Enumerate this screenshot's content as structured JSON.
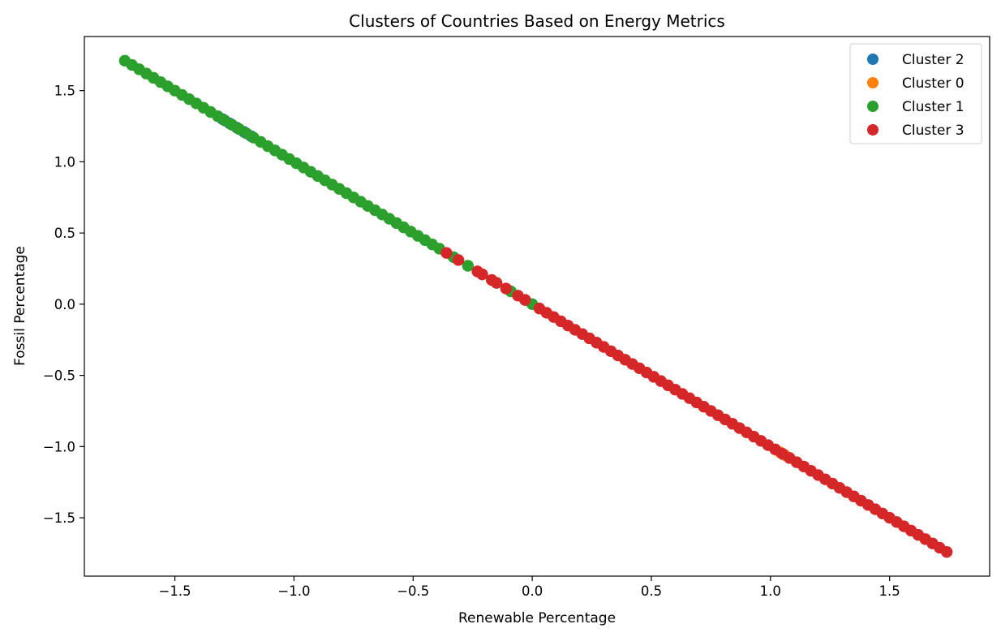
{
  "chart_data": {
    "type": "scatter",
    "title": "Clusters of Countries Based on Energy Metrics",
    "xlabel": "Renewable Percentage",
    "ylabel": "Fossil Percentage",
    "xlim": [
      -1.88,
      1.92
    ],
    "ylim": [
      -1.91,
      1.88
    ],
    "x_ticks": [
      -1.5,
      -1.0,
      -0.5,
      0.0,
      0.5,
      1.0,
      1.5
    ],
    "y_ticks": [
      -1.5,
      -1.0,
      -0.5,
      0.0,
      0.5,
      1.0,
      1.5
    ],
    "x_tick_labels": [
      "−1.5",
      "−1.0",
      "−0.5",
      "0.0",
      "0.5",
      "1.0",
      "1.5"
    ],
    "y_tick_labels": [
      "−1.5",
      "−1.0",
      "−0.5",
      "0.0",
      "0.5",
      "1.0",
      "1.5"
    ],
    "grid": false,
    "legend_position": "top-right",
    "series": [
      {
        "name": "Cluster 2",
        "color": "#1f77b4",
        "x": [
          -1.3,
          -1.27,
          -1.24,
          -1.21,
          -1.18
        ],
        "y": [
          1.3,
          1.27,
          1.24,
          1.21,
          1.18
        ]
      },
      {
        "name": "Cluster 0",
        "color": "#ff7f0e",
        "x": [
          1.04,
          1.06
        ],
        "y": [
          -1.04,
          -1.06
        ]
      },
      {
        "name": "Cluster 1",
        "color": "#2ca02c",
        "x": [
          -1.71,
          -1.68,
          -1.65,
          -1.62,
          -1.59,
          -1.56,
          -1.53,
          -1.5,
          -1.47,
          -1.44,
          -1.41,
          -1.38,
          -1.35,
          -1.32,
          -1.29,
          -1.26,
          -1.23,
          -1.2,
          -1.17,
          -1.14,
          -1.11,
          -1.08,
          -1.05,
          -1.02,
          -0.99,
          -0.96,
          -0.93,
          -0.9,
          -0.87,
          -0.84,
          -0.81,
          -0.78,
          -0.75,
          -0.72,
          -0.69,
          -0.66,
          -0.63,
          -0.6,
          -0.57,
          -0.54,
          -0.51,
          -0.48,
          -0.45,
          -0.42,
          -0.39,
          -0.33,
          -0.27,
          -0.21,
          -0.15,
          -0.09,
          -0.03,
          0.0
        ],
        "y": [
          1.71,
          1.68,
          1.65,
          1.62,
          1.59,
          1.56,
          1.53,
          1.5,
          1.47,
          1.44,
          1.41,
          1.38,
          1.35,
          1.32,
          1.29,
          1.26,
          1.23,
          1.2,
          1.17,
          1.14,
          1.11,
          1.08,
          1.05,
          1.02,
          0.99,
          0.96,
          0.93,
          0.9,
          0.87,
          0.84,
          0.81,
          0.78,
          0.75,
          0.72,
          0.69,
          0.66,
          0.63,
          0.6,
          0.57,
          0.54,
          0.51,
          0.48,
          0.45,
          0.42,
          0.39,
          0.33,
          0.27,
          0.21,
          0.15,
          0.09,
          0.03,
          0.0
        ]
      },
      {
        "name": "Cluster 3",
        "color": "#d62728",
        "x": [
          -0.36,
          -0.31,
          -0.23,
          -0.21,
          -0.17,
          -0.15,
          -0.11,
          -0.06,
          -0.03,
          0.03,
          0.06,
          0.09,
          0.12,
          0.15,
          0.18,
          0.21,
          0.24,
          0.27,
          0.3,
          0.33,
          0.36,
          0.39,
          0.42,
          0.45,
          0.48,
          0.51,
          0.54,
          0.57,
          0.6,
          0.63,
          0.66,
          0.69,
          0.72,
          0.75,
          0.78,
          0.81,
          0.84,
          0.87,
          0.9,
          0.93,
          0.96,
          0.99,
          1.02,
          1.05,
          1.08,
          1.11,
          1.14,
          1.17,
          1.2,
          1.23,
          1.26,
          1.29,
          1.32,
          1.35,
          1.38,
          1.41,
          1.44,
          1.47,
          1.5,
          1.53,
          1.56,
          1.59,
          1.62,
          1.65,
          1.68,
          1.71,
          1.74
        ],
        "y": [
          0.36,
          0.31,
          0.23,
          0.21,
          0.17,
          0.15,
          0.11,
          0.06,
          0.03,
          -0.03,
          -0.06,
          -0.09,
          -0.12,
          -0.15,
          -0.18,
          -0.21,
          -0.24,
          -0.27,
          -0.3,
          -0.33,
          -0.36,
          -0.39,
          -0.42,
          -0.45,
          -0.48,
          -0.51,
          -0.54,
          -0.57,
          -0.6,
          -0.63,
          -0.66,
          -0.69,
          -0.72,
          -0.75,
          -0.78,
          -0.81,
          -0.84,
          -0.87,
          -0.9,
          -0.93,
          -0.96,
          -0.99,
          -1.02,
          -1.05,
          -1.08,
          -1.11,
          -1.14,
          -1.17,
          -1.2,
          -1.23,
          -1.26,
          -1.29,
          -1.32,
          -1.35,
          -1.38,
          -1.41,
          -1.44,
          -1.47,
          -1.5,
          -1.53,
          -1.56,
          -1.59,
          -1.62,
          -1.65,
          -1.68,
          -1.71,
          -1.74
        ]
      }
    ],
    "plot_order": [
      "Cluster 2",
      "Cluster 0",
      "Cluster 1",
      "Cluster 3"
    ]
  }
}
